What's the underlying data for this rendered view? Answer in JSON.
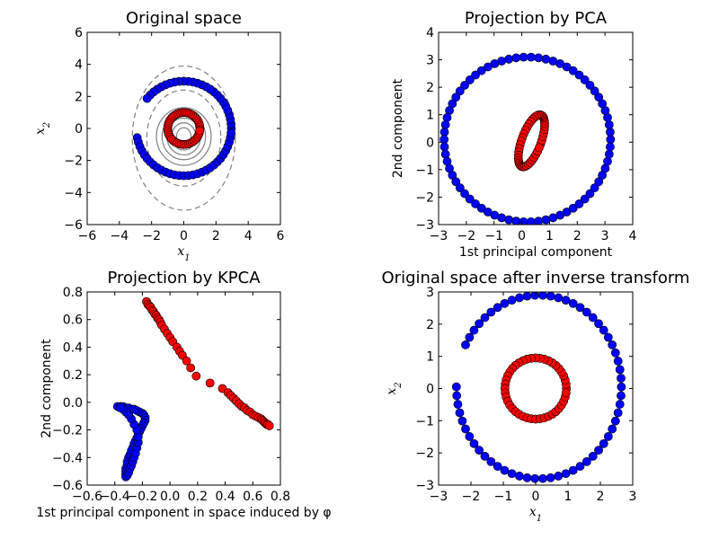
{
  "colors": {
    "class_outer": "#0000ff",
    "class_inner": "#ff0000",
    "contour": "#808080"
  },
  "chart_data": [
    {
      "id": "original",
      "type": "scatter",
      "title": "Original space",
      "xlabel": "x1",
      "ylabel": "x2",
      "xlim": [
        -6,
        6
      ],
      "ylim": [
        -6,
        6
      ],
      "xticks": [
        -6,
        -4,
        -2,
        0,
        2,
        4,
        6
      ],
      "yticks": [
        -6,
        -4,
        -2,
        0,
        2,
        4,
        6
      ],
      "series": [
        {
          "color": "#0000ff",
          "shape": "circle",
          "cx": 0,
          "cy": 0,
          "rx": 2.95,
          "ry": 2.95,
          "count": 64,
          "gaps": [
            [
              145,
              190
            ]
          ]
        },
        {
          "color": "#ff0000",
          "shape": "circle",
          "cx": 0,
          "cy": 0,
          "rx": 1.0,
          "ry": 1.0,
          "count": 44
        }
      ],
      "contours": [
        {
          "cx": 0,
          "cy": -0.6,
          "rx": 3.2,
          "ry": 4.5,
          "style": "dashed"
        },
        {
          "cx": 0,
          "cy": -0.6,
          "rx": 2.3,
          "ry": 3.0,
          "style": "dashed"
        },
        {
          "cx": 0,
          "cy": -0.5,
          "rx": 1.7,
          "ry": 1.8,
          "style": "solid"
        },
        {
          "cx": 0,
          "cy": -0.5,
          "rx": 1.35,
          "ry": 1.45,
          "style": "solid"
        },
        {
          "cx": 0,
          "cy": -0.5,
          "rx": 1.05,
          "ry": 1.15,
          "style": "solid"
        },
        {
          "cx": 0,
          "cy": -0.5,
          "rx": 0.75,
          "ry": 0.85,
          "style": "solid"
        },
        {
          "cx": 0,
          "cy": -0.5,
          "rx": 0.45,
          "ry": 0.55,
          "style": "solid"
        }
      ]
    },
    {
      "id": "pca",
      "type": "scatter",
      "title": "Projection by PCA",
      "xlabel": "1st principal component",
      "ylabel": "2nd component",
      "xlim": [
        -3,
        4
      ],
      "ylim": [
        -3,
        4
      ],
      "xticks": [
        -3,
        -2,
        -1,
        0,
        1,
        2,
        3,
        4
      ],
      "yticks": [
        -3,
        -2,
        -1,
        0,
        1,
        2,
        3,
        4
      ],
      "series": [
        {
          "color": "#0000ff",
          "shape": "circle",
          "cx": 0.2,
          "cy": 0.1,
          "rx": 3.0,
          "ry": 3.0,
          "count": 70
        },
        {
          "color": "#ff0000",
          "shape": "ellipse",
          "cx": 0.35,
          "cy": 0.05,
          "rx": 0.35,
          "ry": 1.0,
          "tilt_deg": -20,
          "count": 44
        }
      ]
    },
    {
      "id": "kpca",
      "type": "scatter",
      "title": "Projection by KPCA",
      "xlabel": "1st principal component in space induced by φ",
      "ylabel": "2nd component",
      "xlim": [
        -0.6,
        0.8
      ],
      "ylim": [
        -0.6,
        0.8
      ],
      "xticks": [
        -0.6,
        -0.4,
        -0.2,
        0.0,
        0.2,
        0.4,
        0.6,
        0.8
      ],
      "yticks": [
        -0.6,
        -0.4,
        -0.2,
        0.0,
        0.2,
        0.4,
        0.6,
        0.8
      ],
      "series": [
        {
          "color": "#ff0000",
          "points": [
            [
              -0.17,
              0.73
            ],
            [
              -0.16,
              0.71
            ],
            [
              -0.15,
              0.7
            ],
            [
              -0.14,
              0.69
            ],
            [
              -0.13,
              0.67
            ],
            [
              -0.12,
              0.66
            ],
            [
              -0.11,
              0.64
            ],
            [
              -0.1,
              0.63
            ],
            [
              -0.09,
              0.61
            ],
            [
              -0.08,
              0.6
            ],
            [
              -0.07,
              0.58
            ],
            [
              -0.06,
              0.56
            ],
            [
              -0.04,
              0.53
            ],
            [
              -0.02,
              0.5
            ],
            [
              0.0,
              0.47
            ],
            [
              0.02,
              0.44
            ],
            [
              0.05,
              0.4
            ],
            [
              0.07,
              0.37
            ],
            [
              0.09,
              0.34
            ],
            [
              0.12,
              0.3
            ],
            [
              0.15,
              0.25
            ],
            [
              0.19,
              0.19
            ],
            [
              0.29,
              0.14
            ],
            [
              0.38,
              0.1
            ],
            [
              0.42,
              0.07
            ],
            [
              0.44,
              0.05
            ],
            [
              0.46,
              0.03
            ],
            [
              0.48,
              0.01
            ],
            [
              0.5,
              -0.01
            ],
            [
              0.52,
              -0.03
            ],
            [
              0.54,
              -0.04
            ],
            [
              0.56,
              -0.06
            ],
            [
              0.58,
              -0.07
            ],
            [
              0.6,
              -0.09
            ],
            [
              0.62,
              -0.1
            ],
            [
              0.64,
              -0.11
            ],
            [
              0.66,
              -0.12
            ],
            [
              0.67,
              -0.13
            ],
            [
              0.68,
              -0.14
            ],
            [
              0.69,
              -0.15
            ],
            [
              0.7,
              -0.16
            ],
            [
              0.71,
              -0.16
            ],
            [
              0.72,
              -0.17
            ]
          ]
        },
        {
          "color": "#0000ff",
          "points": [
            [
              -0.38,
              -0.03
            ],
            [
              -0.36,
              -0.03
            ],
            [
              -0.34,
              -0.03
            ],
            [
              -0.32,
              -0.04
            ],
            [
              -0.3,
              -0.04
            ],
            [
              -0.28,
              -0.05
            ],
            [
              -0.26,
              -0.05
            ],
            [
              -0.24,
              -0.06
            ],
            [
              -0.22,
              -0.07
            ],
            [
              -0.2,
              -0.08
            ],
            [
              -0.19,
              -0.09
            ],
            [
              -0.18,
              -0.11
            ],
            [
              -0.18,
              -0.13
            ],
            [
              -0.19,
              -0.15
            ],
            [
              -0.2,
              -0.17
            ],
            [
              -0.21,
              -0.19
            ],
            [
              -0.22,
              -0.21
            ],
            [
              -0.23,
              -0.23
            ],
            [
              -0.24,
              -0.26
            ],
            [
              -0.25,
              -0.28
            ],
            [
              -0.26,
              -0.3
            ],
            [
              -0.27,
              -0.33
            ],
            [
              -0.28,
              -0.35
            ],
            [
              -0.29,
              -0.38
            ],
            [
              -0.3,
              -0.4
            ],
            [
              -0.31,
              -0.43
            ],
            [
              -0.31,
              -0.45
            ],
            [
              -0.32,
              -0.48
            ],
            [
              -0.32,
              -0.5
            ],
            [
              -0.32,
              -0.52
            ],
            [
              -0.32,
              -0.54
            ],
            [
              -0.31,
              -0.53
            ],
            [
              -0.3,
              -0.51
            ],
            [
              -0.29,
              -0.48
            ],
            [
              -0.28,
              -0.46
            ],
            [
              -0.27,
              -0.43
            ],
            [
              -0.26,
              -0.4
            ],
            [
              -0.25,
              -0.37
            ],
            [
              -0.24,
              -0.33
            ],
            [
              -0.23,
              -0.29
            ],
            [
              -0.23,
              -0.25
            ],
            [
              -0.24,
              -0.2
            ],
            [
              -0.26,
              -0.16
            ],
            [
              -0.28,
              -0.12
            ],
            [
              -0.3,
              -0.09
            ],
            [
              -0.32,
              -0.07
            ],
            [
              -0.34,
              -0.05
            ],
            [
              -0.36,
              -0.04
            ]
          ]
        }
      ]
    },
    {
      "id": "inverse",
      "type": "scatter",
      "title": "Original space after inverse transform",
      "xlabel": "x1",
      "ylabel": "x2",
      "xlim": [
        -3,
        3
      ],
      "ylim": [
        -3,
        3
      ],
      "xticks": [
        -3,
        -2,
        -1,
        0,
        1,
        2,
        3
      ],
      "yticks": [
        -3,
        -2,
        -1,
        0,
        1,
        2,
        3
      ],
      "series": [
        {
          "color": "#0000ff",
          "shape": "circle",
          "cx": 0.1,
          "cy": 0.05,
          "rx": 2.55,
          "ry": 2.85,
          "count": 66,
          "gaps": [
            [
              158,
              176
            ]
          ]
        },
        {
          "color": "#ff0000",
          "shape": "circle",
          "cx": 0.0,
          "cy": 0.0,
          "rx": 0.95,
          "ry": 0.95,
          "count": 44
        }
      ]
    }
  ]
}
